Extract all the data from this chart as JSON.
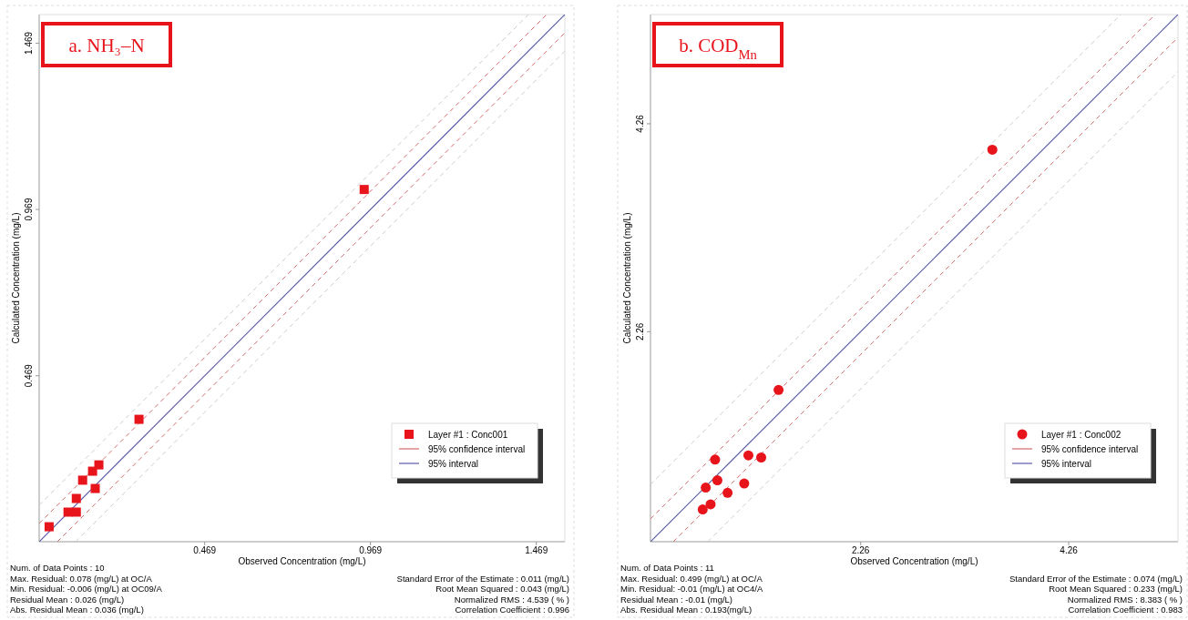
{
  "chart_data": [
    {
      "type": "scatter",
      "title": "a. NH₃–N",
      "xlabel": "Observed Concentration (mg/L)",
      "ylabel": "Calculated Concentration (mg/L)",
      "xlim": [
        -0.03,
        1.555
      ],
      "ylim": [
        -0.03,
        1.555
      ],
      "xticks": [
        0.469,
        0.969,
        1.469
      ],
      "yticks": [
        0.469,
        0.969,
        1.469
      ],
      "marker": "square",
      "legend": "bottom right",
      "grid": false,
      "series": [
        {
          "name": "Layer #1 : Conc001",
          "color": "#e8141c",
          "x": [
            0.0,
            0.057,
            0.082,
            0.082,
            0.101,
            0.131,
            0.15,
            0.139,
            0.271,
            0.95
          ],
          "values": [
            0.015,
            0.059,
            0.059,
            0.1,
            0.155,
            0.182,
            0.201,
            0.13,
            0.338,
            1.029
          ]
        },
        {
          "name": "95% confidence interval",
          "type": "line",
          "marker": "none",
          "line_style": "dashed",
          "color": "#d46a6a",
          "x": [
            -0.03,
            1.5
          ],
          "values": [
            0.025,
            1.555
          ]
        },
        {
          "type": "line",
          "marker": "none",
          "line_style": "dashed",
          "color": "#d46a6a",
          "x": [
            0.025,
            1.555
          ],
          "values": [
            -0.03,
            1.5
          ]
        },
        {
          "name": "95% interval",
          "type": "line",
          "marker": "none",
          "line_style": "solid",
          "color": "#5a5aa8",
          "x": [
            -0.03,
            1.555
          ],
          "values": [
            -0.03,
            1.555
          ]
        },
        {
          "type": "line",
          "marker": "none",
          "line_style": "dashed",
          "color": "#cccccc",
          "x": [
            -0.03,
            1.445
          ],
          "values": [
            0.08,
            1.555
          ]
        },
        {
          "type": "line",
          "marker": "none",
          "line_style": "dashed",
          "color": "#cccccc",
          "x": [
            0.08,
            1.555
          ],
          "values": [
            -0.03,
            1.445
          ]
        }
      ],
      "annotations": [
        "Num. of Data Points : 10",
        "Max. Residual: 0.078 (mg/L) at OC/A",
        "Min. Residual: -0.006 (mg/L) at OC09/A",
        "Residual Mean : 0.026 (mg/L)",
        "Abs. Residual Mean : 0.036 (mg/L)",
        "Standard Error of the Estimate : 0.011 (mg/L)",
        "Root Mean Squared : 0.043 (mg/L)",
        "Normalized RMS : 4.539 ( % )",
        "Correlation Coefficient : 0.996"
      ]
    },
    {
      "type": "scatter",
      "title": "b. COD$_{Mn}$",
      "xlabel": "Observed Concentration (mg/L)",
      "ylabel": "Calculated Concentration (mg/L)",
      "xlim": [
        0.24,
        5.31
      ],
      "ylim": [
        0.24,
        5.31
      ],
      "xticks": [
        2.26,
        4.26
      ],
      "yticks": [
        2.26,
        4.26
      ],
      "marker": "circle",
      "legend": "bottom right",
      "grid": false,
      "series": [
        {
          "name": "Layer #1 : Conc002",
          "color": "#e8141c",
          "x": [
            3.526,
            1.471,
            0.861,
            1.181,
            1.304,
            0.883,
            0.771,
            0.981,
            1.141,
            0.818,
            0.742
          ],
          "values": [
            4.01,
            1.7,
            1.03,
            1.07,
            1.05,
            0.83,
            0.76,
            0.71,
            0.8,
            0.6,
            0.55
          ]
        },
        {
          "name": "95% confidence interval",
          "type": "line",
          "marker": "none",
          "line_style": "dashed",
          "color": "#d46a6a",
          "x": [
            0.24,
            5.09
          ],
          "values": [
            0.46,
            5.31
          ]
        },
        {
          "type": "line",
          "marker": "none",
          "line_style": "dashed",
          "color": "#d46a6a",
          "x": [
            0.46,
            5.31
          ],
          "values": [
            0.24,
            5.09
          ]
        },
        {
          "name": "95% interval",
          "type": "line",
          "marker": "none",
          "line_style": "solid",
          "color": "#5a5aa8",
          "x": [
            0.24,
            5.31
          ],
          "values": [
            0.24,
            5.31
          ]
        },
        {
          "type": "line",
          "marker": "none",
          "line_style": "dashed",
          "color": "#cccccc",
          "x": [
            0.24,
            4.76
          ],
          "values": [
            0.79,
            5.31
          ]
        },
        {
          "type": "line",
          "marker": "none",
          "line_style": "dashed",
          "color": "#cccccc",
          "x": [
            0.79,
            5.31
          ],
          "values": [
            0.24,
            4.76
          ]
        }
      ],
      "annotations": [
        "Num. of Data Points : 11",
        "Max. Residual: 0.499 (mg/L) at OC/A",
        "Min. Residual: -0.01 (mg/L) at OC4/A",
        "Residual Mean : -0.01 (mg/L)",
        "Abs. Residual Mean : 0.193(mg/L)",
        "Standard Error of the Estimate : 0.074 (mg/L)",
        "Root Mean Squared : 0.233 (mg/L)",
        "Normalized RMS : 8.383 ( % )",
        "Correlation Coefficient : 0.983"
      ]
    }
  ]
}
